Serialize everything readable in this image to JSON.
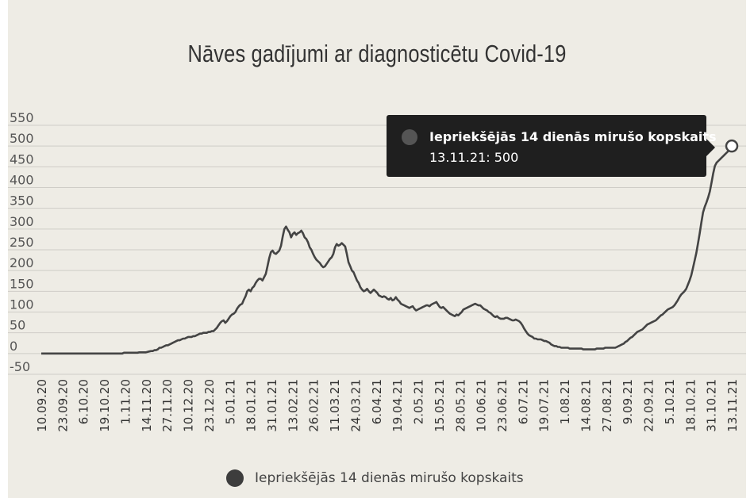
{
  "title": "Nāves gadījumi ar diagnosticētu Covid-19",
  "chart_data": {
    "type": "line",
    "title": "Nāves gadījumi ar diagnosticētu Covid-19",
    "xlabel": "",
    "ylabel": "",
    "ylim": [
      -50,
      550
    ],
    "yticks": [
      "550",
      "500",
      "450",
      "400",
      "350",
      "300",
      "250",
      "200",
      "150",
      "100",
      "50",
      "0",
      "-50"
    ],
    "grid": true,
    "legend_position": "bottom",
    "x_tick_labels": [
      "10.09.20",
      "23.09.20",
      "6.10.20",
      "19.10.20",
      "1.11.20",
      "14.11.20",
      "27.11.20",
      "10.12.20",
      "23.12.20",
      "5.01.21",
      "18.01.21",
      "31.01.21",
      "13.02.21",
      "26.02.21",
      "11.03.21",
      "24.03.21",
      "6.04.21",
      "19.04.21",
      "2.05.21",
      "15.05.21",
      "28.05.21",
      "10.06.21",
      "23.06.21",
      "6.07.21",
      "19.07.21",
      "1.08.21",
      "14.08.21",
      "27.08.21",
      "9.09.21",
      "22.09.21",
      "5.10.21",
      "18.10.21",
      "31.10.21",
      "13.11.21"
    ],
    "series": [
      {
        "name": "Iepriekšējās 14 dienās mirušo kopskaits",
        "color": "#444444",
        "x_start": "10.09.20",
        "x_end": "13.11.21",
        "values": [
          0,
          0,
          0,
          0,
          0,
          0,
          0,
          0,
          0,
          0,
          0,
          0,
          0,
          0,
          0,
          0,
          0,
          0,
          0,
          0,
          0,
          0,
          0,
          0,
          0,
          0,
          0,
          0,
          0,
          0,
          0,
          0,
          0,
          0,
          0,
          0,
          0,
          0,
          0,
          0,
          0,
          0,
          0,
          0,
          0,
          0,
          0,
          0,
          0,
          2,
          2,
          2,
          2,
          2,
          2,
          2,
          2,
          2,
          3,
          3,
          3,
          3,
          3,
          4,
          5,
          6,
          6,
          8,
          8,
          10,
          14,
          14,
          16,
          18,
          20,
          20,
          22,
          24,
          26,
          28,
          30,
          32,
          32,
          34,
          36,
          36,
          38,
          40,
          40,
          40,
          42,
          42,
          44,
          46,
          48,
          48,
          50,
          50,
          50,
          52,
          52,
          54,
          54,
          58,
          62,
          68,
          74,
          78,
          80,
          74,
          78,
          84,
          90,
          94,
          96,
          100,
          108,
          114,
          118,
          120,
          130,
          138,
          150,
          154,
          150,
          158,
          162,
          170,
          176,
          180,
          180,
          176,
          184,
          192,
          210,
          230,
          244,
          248,
          242,
          240,
          244,
          248,
          260,
          282,
          300,
          306,
          298,
          292,
          280,
          288,
          292,
          286,
          290,
          292,
          296,
          290,
          280,
          276,
          268,
          256,
          250,
          240,
          232,
          226,
          222,
          218,
          212,
          208,
          210,
          216,
          222,
          228,
          232,
          240,
          256,
          264,
          260,
          262,
          266,
          262,
          258,
          240,
          220,
          210,
          200,
          196,
          186,
          176,
          170,
          160,
          154,
          150,
          152,
          156,
          150,
          146,
          150,
          154,
          150,
          146,
          140,
          138,
          136,
          138,
          136,
          132,
          130,
          134,
          128,
          130,
          136,
          130,
          126,
          120,
          118,
          116,
          114,
          112,
          110,
          112,
          114,
          108,
          104,
          106,
          108,
          110,
          112,
          114,
          116,
          116,
          114,
          118,
          120,
          122,
          124,
          118,
          112,
          110,
          112,
          108,
          104,
          100,
          96,
          94,
          92,
          90,
          94,
          92,
          96,
          100,
          106,
          108,
          110,
          112,
          114,
          116,
          118,
          120,
          118,
          116,
          116,
          112,
          108,
          106,
          104,
          100,
          98,
          94,
          90,
          88,
          90,
          86,
          84,
          84,
          84,
          86,
          86,
          84,
          82,
          80,
          80,
          82,
          80,
          78,
          74,
          68,
          60,
          54,
          48,
          44,
          42,
          40,
          36,
          36,
          34,
          34,
          34,
          32,
          30,
          30,
          28,
          26,
          22,
          20,
          18,
          18,
          16,
          16,
          14,
          14,
          14,
          14,
          14,
          12,
          12,
          12,
          12,
          12,
          12,
          12,
          12,
          10,
          10,
          10,
          10,
          10,
          10,
          10,
          10,
          12,
          12,
          12,
          12,
          12,
          14,
          14,
          14,
          14,
          14,
          14,
          14,
          16,
          18,
          20,
          22,
          24,
          28,
          30,
          34,
          38,
          40,
          44,
          48,
          52,
          54,
          56,
          58,
          62,
          66,
          70,
          72,
          74,
          76,
          78,
          80,
          84,
          88,
          92,
          94,
          98,
          102,
          106,
          108,
          110,
          112,
          116,
          122,
          128,
          136,
          142,
          146,
          150,
          156,
          166,
          176,
          188,
          206,
          224,
          242,
          266,
          290,
          316,
          340,
          354,
          364,
          376,
          390,
          412,
          434,
          452,
          460,
          464,
          468,
          472,
          476,
          480,
          484,
          488,
          492,
          500
        ]
      }
    ]
  },
  "tooltip": {
    "series": "Iepriekšējās 14 dienās mirušo kopskaits",
    "value_text": "13.11.21: 500"
  },
  "legend": {
    "label": "Iepriekšējās 14 dienās mirušo kopskaits",
    "marker_color": "#3d3d3d"
  },
  "colors": {
    "background": "#eeece5",
    "line": "#444444",
    "grid": "#cfcdc7",
    "tooltip_bg": "#1f1f1f"
  }
}
